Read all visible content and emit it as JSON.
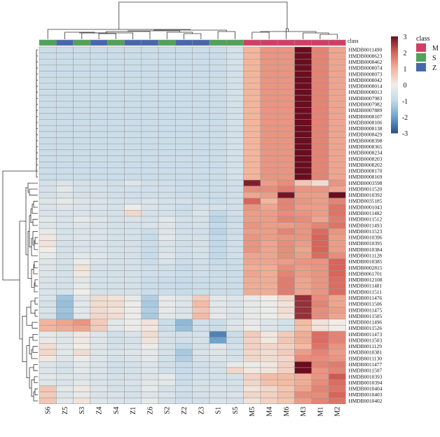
{
  "chart_data": {
    "type": "heatmap",
    "title": "",
    "columns": [
      "S6",
      "Z5",
      "S3",
      "Z4",
      "S4",
      "Z1",
      "Z6",
      "S2",
      "Z2",
      "Z3",
      "S1",
      "S5",
      "M5",
      "M4",
      "M6",
      "M3",
      "M1",
      "M2"
    ],
    "column_classes": [
      "S",
      "Z",
      "S",
      "Z",
      "S",
      "Z",
      "Z",
      "S",
      "Z",
      "Z",
      "S",
      "S",
      "M",
      "M",
      "M",
      "M",
      "M",
      "M"
    ],
    "rows": [
      "HMDB0011490",
      "HMDB0008623",
      "HMDB0008462",
      "HMDB0008074",
      "HMDB0008073",
      "HMDB0008042",
      "HMDB0008014",
      "HMDB0008013",
      "HMDB0007983",
      "HMDB0007982",
      "HMDB0007889",
      "HMDB0008107",
      "HMDB0008106",
      "HMDB0008138",
      "HMDB0008429",
      "HMDB0008398",
      "HMDB0008365",
      "HMDB0008234",
      "HMDB0008203",
      "HMDB0008202",
      "HMDB0008170",
      "HMDB0008169",
      "HMDB0003598",
      "HMDB0011520",
      "HMDB0010392",
      "HMDB0035185",
      "HMDB0001043",
      "HMDB0011482",
      "HMDB0011512",
      "HMDB0011493",
      "HMDB0011523",
      "HMDB0010396",
      "HMDB0010395",
      "HMDB0010384",
      "HMDB0011128",
      "HMDB0010385",
      "HMDB0002815",
      "HMDB0061701",
      "HMDB0012108",
      "HMDB0011481",
      "HMDB0011511",
      "HMDB0011476",
      "HMDB0011506",
      "HMDB0011475",
      "HMDB0011505",
      "HMDB0011496",
      "HMDB0011526",
      "HMDB0011473",
      "HMDB0011503",
      "HMDB0011129",
      "HMDB0010381",
      "HMDB0011130",
      "HMDB0011477",
      "HMDB0011507",
      "HMDB0010393",
      "HMDB0010394",
      "HMDB0010404",
      "HMDB0010403",
      "HMDB0010402"
    ],
    "values": [
      [
        -0.8,
        -0.8,
        -0.8,
        -0.8,
        -0.8,
        -0.8,
        -0.8,
        -0.8,
        -0.8,
        -0.8,
        -0.8,
        -0.6,
        1.0,
        1.4,
        1.4,
        3.0,
        1.6,
        1.2
      ],
      [
        -0.8,
        -0.8,
        -0.8,
        -0.8,
        -0.8,
        -0.8,
        -0.8,
        -0.8,
        -0.8,
        -0.8,
        -0.8,
        -0.6,
        1.0,
        1.4,
        1.4,
        3.0,
        1.6,
        1.2
      ],
      [
        -0.8,
        -0.8,
        -0.8,
        -0.8,
        -0.8,
        -0.8,
        -0.8,
        -0.8,
        -0.8,
        -0.8,
        -0.8,
        -0.6,
        1.0,
        1.4,
        1.4,
        3.0,
        1.6,
        1.2
      ],
      [
        -0.8,
        -0.8,
        -0.8,
        -0.8,
        -0.8,
        -0.8,
        -0.8,
        -0.8,
        -0.8,
        -0.8,
        -0.8,
        -0.6,
        1.0,
        1.4,
        1.4,
        3.0,
        1.6,
        1.2
      ],
      [
        -0.8,
        -0.8,
        -0.8,
        -0.8,
        -0.8,
        -0.8,
        -0.8,
        -0.8,
        -0.8,
        -0.8,
        -0.8,
        -0.6,
        1.0,
        1.4,
        1.4,
        3.0,
        1.6,
        1.2
      ],
      [
        -0.8,
        -0.8,
        -0.8,
        -0.8,
        -0.8,
        -0.8,
        -0.8,
        -0.8,
        -0.8,
        -0.8,
        -0.8,
        -0.6,
        1.0,
        1.4,
        1.4,
        3.0,
        1.6,
        1.2
      ],
      [
        -0.8,
        -0.8,
        -0.8,
        -0.8,
        -0.8,
        -0.8,
        -0.8,
        -0.8,
        -0.8,
        -0.8,
        -0.8,
        -0.6,
        1.0,
        1.4,
        1.4,
        3.0,
        1.6,
        1.2
      ],
      [
        -0.8,
        -0.8,
        -0.8,
        -0.8,
        -0.8,
        -0.8,
        -0.8,
        -0.8,
        -0.8,
        -0.8,
        -0.8,
        -0.6,
        1.0,
        1.4,
        1.4,
        3.0,
        1.6,
        1.2
      ],
      [
        -0.8,
        -0.8,
        -0.8,
        -0.8,
        -0.8,
        -0.8,
        -0.8,
        -0.8,
        -0.8,
        -0.8,
        -0.8,
        -0.6,
        1.0,
        1.4,
        1.4,
        3.0,
        1.6,
        1.2
      ],
      [
        -0.8,
        -0.8,
        -0.8,
        -0.8,
        -0.8,
        -0.8,
        -0.8,
        -0.8,
        -0.8,
        -0.8,
        -0.8,
        -0.6,
        1.0,
        1.4,
        1.4,
        3.0,
        1.6,
        1.2
      ],
      [
        -0.8,
        -0.8,
        -0.8,
        -0.8,
        -0.8,
        -0.8,
        -0.8,
        -0.8,
        -0.8,
        -0.8,
        -0.8,
        -0.6,
        1.0,
        1.4,
        1.4,
        3.0,
        1.6,
        1.2
      ],
      [
        -0.8,
        -0.8,
        -0.8,
        -0.8,
        -0.8,
        -0.8,
        -0.8,
        -0.8,
        -0.8,
        -0.8,
        -0.8,
        -0.6,
        1.0,
        1.4,
        1.4,
        3.0,
        1.6,
        1.2
      ],
      [
        -0.8,
        -0.8,
        -0.8,
        -0.8,
        -0.8,
        -0.8,
        -0.8,
        -0.8,
        -0.8,
        -0.8,
        -0.8,
        -0.6,
        1.0,
        1.4,
        1.4,
        3.0,
        1.6,
        1.2
      ],
      [
        -0.8,
        -0.8,
        -0.8,
        -0.8,
        -0.8,
        -0.8,
        -0.8,
        -0.8,
        -0.8,
        -0.8,
        -0.8,
        -0.6,
        1.0,
        1.4,
        1.4,
        3.0,
        1.6,
        1.2
      ],
      [
        -0.8,
        -0.8,
        -0.8,
        -0.8,
        -0.8,
        -0.8,
        -0.8,
        -0.8,
        -0.8,
        -0.8,
        -0.8,
        -0.6,
        1.0,
        1.4,
        1.4,
        3.0,
        1.6,
        1.2
      ],
      [
        -0.8,
        -0.8,
        -0.8,
        -0.8,
        -0.8,
        -0.8,
        -0.8,
        -0.8,
        -0.8,
        -0.8,
        -0.8,
        -0.6,
        1.0,
        1.4,
        1.4,
        3.0,
        1.6,
        1.2
      ],
      [
        -0.8,
        -0.8,
        -0.8,
        -0.8,
        -0.8,
        -0.8,
        -0.8,
        -0.8,
        -0.8,
        -0.8,
        -0.8,
        -0.6,
        1.0,
        1.4,
        1.4,
        3.0,
        1.6,
        1.2
      ],
      [
        -0.8,
        -0.8,
        -0.8,
        -0.8,
        -0.8,
        -0.8,
        -0.8,
        -0.8,
        -0.8,
        -0.8,
        -0.8,
        -0.6,
        1.0,
        1.4,
        1.4,
        3.0,
        1.6,
        1.2
      ],
      [
        -0.8,
        -0.8,
        -0.8,
        -0.8,
        -0.8,
        -0.8,
        -0.8,
        -0.8,
        -0.8,
        -0.8,
        -0.8,
        -0.6,
        1.0,
        1.4,
        1.4,
        3.0,
        1.6,
        1.2
      ],
      [
        -0.8,
        -0.8,
        -0.8,
        -0.8,
        -0.8,
        -0.8,
        -0.8,
        -0.8,
        -0.8,
        -0.8,
        -0.8,
        -0.6,
        1.0,
        1.4,
        1.4,
        3.0,
        1.6,
        1.2
      ],
      [
        -0.8,
        -0.8,
        -0.8,
        -0.8,
        -0.8,
        -0.8,
        -0.8,
        -0.8,
        -0.8,
        -0.8,
        -0.8,
        -0.6,
        1.0,
        1.4,
        1.4,
        3.0,
        1.6,
        1.2
      ],
      [
        -0.8,
        -0.8,
        -0.8,
        -0.8,
        -0.8,
        -0.8,
        -0.8,
        -0.8,
        -0.8,
        -0.8,
        -0.8,
        -0.6,
        1.0,
        1.4,
        1.4,
        3.0,
        1.6,
        1.2
      ],
      [
        -0.6,
        -0.5,
        -0.6,
        -0.6,
        -0.7,
        -0.4,
        -0.7,
        -0.7,
        -0.8,
        -0.8,
        -0.8,
        -0.7,
        2.8,
        1.3,
        1.5,
        0.7,
        0.3,
        1.4
      ],
      [
        -0.6,
        -0.3,
        -0.6,
        -0.6,
        -0.7,
        -0.7,
        -0.7,
        -0.7,
        -0.8,
        -0.8,
        -0.8,
        -0.7,
        1.5,
        1.5,
        1.7,
        1.4,
        1.4,
        1.2
      ],
      [
        -0.6,
        -0.5,
        -0.6,
        -0.6,
        -0.7,
        -0.7,
        -0.7,
        -0.7,
        -0.8,
        -0.8,
        -0.8,
        -0.7,
        1.2,
        1.3,
        2.9,
        1.3,
        1.3,
        3.1
      ],
      [
        -0.4,
        -0.2,
        -0.4,
        -0.5,
        -0.6,
        -0.6,
        -0.5,
        -0.6,
        -0.6,
        -0.7,
        -0.8,
        -0.7,
        2.0,
        1.0,
        1.6,
        1.4,
        1.3,
        1.6
      ],
      [
        -0.5,
        -0.4,
        -0.5,
        -0.5,
        -0.6,
        -0.1,
        -0.5,
        -0.6,
        -0.8,
        -0.6,
        -0.6,
        -0.7,
        1.4,
        1.2,
        1.6,
        1.3,
        1.3,
        1.8
      ],
      [
        -0.5,
        -0.5,
        -0.5,
        -0.6,
        -0.6,
        0.4,
        -0.6,
        -0.6,
        -0.8,
        -0.5,
        -1.0,
        -0.7,
        1.3,
        1.3,
        1.5,
        1.4,
        1.3,
        1.8
      ],
      [
        -0.3,
        -0.5,
        -0.2,
        -0.4,
        -0.6,
        -0.5,
        -0.6,
        -0.3,
        -0.6,
        -0.6,
        -1.1,
        -0.8,
        1.3,
        1.3,
        1.6,
        1.5,
        1.2,
        1.7
      ],
      [
        -0.4,
        -0.5,
        -0.4,
        -0.5,
        -0.6,
        -0.6,
        -0.5,
        -0.4,
        -0.7,
        -0.6,
        -1.0,
        -0.7,
        1.4,
        1.3,
        1.3,
        1.4,
        1.6,
        1.8
      ],
      [
        -0.2,
        -0.6,
        -0.5,
        -0.5,
        -0.6,
        -0.6,
        -0.8,
        -0.4,
        -0.7,
        -0.7,
        -1.1,
        -0.8,
        1.3,
        1.3,
        1.6,
        1.4,
        1.9,
        1.4
      ],
      [
        0.1,
        -0.5,
        -0.4,
        -0.5,
        -0.6,
        -0.6,
        -0.9,
        -0.3,
        -0.6,
        -0.6,
        -1.0,
        -0.7,
        1.4,
        1.3,
        1.4,
        1.4,
        2.0,
        1.3
      ],
      [
        0.2,
        -0.6,
        -0.5,
        -0.5,
        -0.6,
        -0.6,
        -0.8,
        -0.5,
        -0.7,
        -0.6,
        -1.0,
        -0.7,
        1.4,
        1.2,
        1.5,
        1.3,
        2.0,
        1.3
      ],
      [
        0.0,
        -0.6,
        -0.5,
        -0.5,
        -0.6,
        -0.6,
        -0.9,
        -0.5,
        -0.7,
        -0.6,
        -1.0,
        -0.7,
        1.4,
        1.2,
        1.5,
        1.2,
        2.0,
        1.3
      ],
      [
        -0.2,
        -0.6,
        -0.3,
        -0.4,
        -0.6,
        -0.6,
        -0.9,
        -0.4,
        -0.7,
        -0.6,
        -1.0,
        -0.7,
        1.2,
        1.2,
        1.5,
        1.3,
        1.9,
        1.5
      ],
      [
        -0.4,
        -0.6,
        -0.1,
        -0.5,
        -0.6,
        -0.6,
        -0.8,
        -0.5,
        -0.8,
        -0.7,
        -0.9,
        -0.8,
        1.2,
        1.2,
        1.3,
        1.4,
        1.4,
        2.0
      ],
      [
        -0.4,
        -0.6,
        0.2,
        -0.6,
        -0.6,
        -0.6,
        -0.7,
        -0.7,
        -0.9,
        -0.7,
        -0.8,
        -0.8,
        1.1,
        1.1,
        1.5,
        1.3,
        1.4,
        2.0
      ],
      [
        -0.4,
        -0.6,
        0.1,
        -0.6,
        -0.6,
        -0.6,
        -0.7,
        -0.7,
        -0.8,
        -0.7,
        -0.8,
        -0.8,
        1.2,
        1.1,
        1.6,
        1.3,
        1.4,
        2.0
      ],
      [
        -0.5,
        -0.6,
        -0.3,
        -0.6,
        -0.6,
        -0.6,
        -0.8,
        -0.8,
        -0.9,
        -0.8,
        -0.8,
        -0.8,
        1.1,
        1.1,
        1.7,
        1.2,
        1.4,
        1.9
      ],
      [
        -0.5,
        -0.6,
        -0.2,
        -0.6,
        -0.6,
        -0.6,
        -0.8,
        -0.8,
        -0.9,
        -0.8,
        -0.8,
        -0.8,
        1.1,
        1.1,
        1.7,
        1.2,
        1.4,
        1.9
      ],
      [
        -0.5,
        -0.6,
        0.0,
        -0.6,
        -0.6,
        -0.6,
        -0.8,
        -0.8,
        -0.9,
        -0.8,
        -0.8,
        -0.8,
        1.1,
        1.1,
        1.7,
        1.2,
        1.4,
        1.9
      ],
      [
        -0.5,
        -1.4,
        -0.4,
        0.3,
        0.2,
        -0.2,
        -1.2,
        -0.2,
        -0.4,
        0.6,
        -0.3,
        -0.4,
        -0.2,
        0.0,
        0.4,
        2.6,
        1.5,
        1.2
      ],
      [
        -0.6,
        -1.5,
        -0.3,
        0.3,
        0.3,
        -0.1,
        -1.3,
        -0.2,
        -0.4,
        0.9,
        -0.3,
        -0.5,
        -0.2,
        -0.1,
        0.2,
        2.6,
        1.6,
        1.2
      ],
      [
        -0.5,
        -1.4,
        -0.3,
        0.3,
        0.2,
        -0.1,
        -1.2,
        -0.2,
        -0.5,
        0.7,
        -0.3,
        -0.4,
        -0.2,
        -0.1,
        0.3,
        2.6,
        1.5,
        1.3
      ],
      [
        -0.6,
        -1.5,
        -0.3,
        0.4,
        0.3,
        -0.1,
        -1.3,
        -0.3,
        -0.4,
        0.9,
        -0.2,
        -0.5,
        -0.2,
        -0.1,
        0.2,
        2.6,
        1.5,
        1.2
      ],
      [
        1.0,
        1.2,
        1.4,
        0.6,
        -0.3,
        -0.1,
        0.2,
        -0.8,
        -1.6,
        -0.7,
        -0.8,
        -0.4,
        -0.2,
        -0.4,
        -0.6,
        0.9,
        0.2,
        0.0
      ],
      [
        1.0,
        1.1,
        1.2,
        0.6,
        -0.3,
        -0.1,
        0.1,
        -0.8,
        -1.5,
        -0.7,
        -0.8,
        -0.4,
        -0.1,
        -0.4,
        -0.6,
        0.8,
        0.2,
        0.0
      ],
      [
        -0.2,
        -0.4,
        0.1,
        -0.4,
        -0.7,
        -0.5,
        0.3,
        -0.6,
        -0.7,
        -0.6,
        -2.4,
        -0.8,
        0.6,
        0.1,
        0.6,
        1.1,
        1.9,
        1.6
      ],
      [
        -0.2,
        -0.4,
        0.1,
        -0.4,
        -0.7,
        -0.6,
        0.2,
        -0.6,
        -0.7,
        -0.6,
        -2.0,
        -0.8,
        0.5,
        0.1,
        0.7,
        1.1,
        1.9,
        1.6
      ],
      [
        0.3,
        -0.3,
        0.0,
        -0.4,
        -0.6,
        -0.5,
        -0.1,
        -0.6,
        -1.0,
        -0.6,
        -0.3,
        -0.6,
        0.5,
        0.4,
        0.5,
        0.9,
        1.8,
        1.4
      ],
      [
        0.4,
        -0.3,
        0.3,
        -0.4,
        -0.5,
        -0.4,
        -0.2,
        -0.6,
        -1.3,
        -0.5,
        -0.4,
        -0.6,
        0.4,
        0.3,
        0.6,
        1.3,
        1.6,
        1.3
      ],
      [
        0.1,
        -0.4,
        -0.1,
        -0.4,
        -0.6,
        -0.5,
        -0.3,
        -0.7,
        -1.2,
        -0.6,
        -0.5,
        -0.6,
        0.4,
        0.3,
        0.4,
        1.5,
        1.5,
        1.4
      ],
      [
        -0.4,
        -0.6,
        -0.3,
        -0.5,
        -0.7,
        -0.6,
        -0.4,
        -0.7,
        -0.9,
        -0.7,
        -0.6,
        -0.2,
        -0.1,
        0.1,
        0.5,
        3.1,
        1.6,
        1.7
      ],
      [
        -0.4,
        -0.6,
        -0.3,
        -0.5,
        -0.7,
        -0.6,
        -0.4,
        -0.7,
        -0.9,
        -0.7,
        -0.6,
        0.4,
        0.1,
        0.2,
        0.5,
        3.2,
        1.4,
        1.6
      ],
      [
        -0.3,
        -0.4,
        -0.4,
        -0.5,
        -0.6,
        -0.6,
        -0.4,
        -0.2,
        -0.8,
        -0.6,
        -0.6,
        -0.6,
        0.5,
        0.9,
        0.9,
        1.1,
        1.4,
        2.1
      ],
      [
        -0.4,
        -0.5,
        -0.3,
        -0.5,
        -0.6,
        -0.5,
        -0.3,
        -0.3,
        -0.8,
        -0.6,
        -0.6,
        -0.6,
        0.4,
        0.8,
        0.9,
        1.1,
        1.5,
        1.9
      ],
      [
        0.7,
        -0.3,
        0.1,
        -0.4,
        -0.6,
        -0.6,
        -0.2,
        -0.6,
        -0.7,
        -0.6,
        -0.5,
        -0.6,
        0.2,
        0.4,
        0.7,
        1.2,
        1.6,
        1.8
      ],
      [
        0.6,
        -0.4,
        -0.2,
        -0.5,
        -0.5,
        -0.6,
        -0.4,
        -0.5,
        -0.8,
        -0.6,
        -0.6,
        -0.5,
        0.4,
        0.5,
        0.8,
        1.5,
        1.5,
        2.0
      ],
      [
        0.7,
        -0.3,
        0.2,
        -0.4,
        -0.5,
        -0.5,
        -0.2,
        -0.6,
        -0.7,
        -0.7,
        -0.5,
        -0.6,
        0.2,
        0.5,
        0.7,
        1.3,
        1.6,
        1.8
      ]
    ],
    "color_range": [
      -3,
      3
    ],
    "color_ticks": [
      3,
      2,
      1,
      0,
      -1,
      -2,
      -3
    ],
    "color_scale": [
      "#2b4e8a",
      "#6ba4cc",
      "#c2d9e9",
      "#f0ede9",
      "#f3b59c",
      "#d8645a",
      "#6b0d1f"
    ],
    "annotation_header": "class",
    "legend_title": "class",
    "legend": [
      {
        "label": "M",
        "color": "#d33d64"
      },
      {
        "label": "S",
        "color": "#4fa35a"
      },
      {
        "label": "Z",
        "color": "#4767ad"
      }
    ]
  }
}
